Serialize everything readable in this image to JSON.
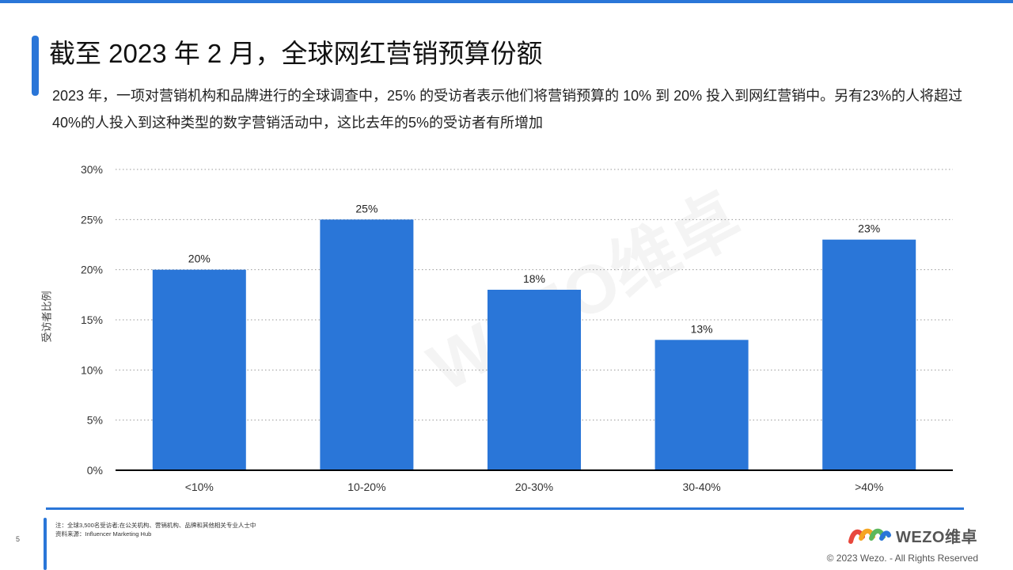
{
  "page": {
    "title": "截至 2023 年 2 月，全球网红营销预算份额",
    "subtitle": "2023 年，一项对营销机构和品牌进行的全球调查中，25% 的受访者表示他们将营销预算的 10% 到 20% 投入到网红营销中。另有23%的人将超过40%的人投入到这种类型的数字营销活动中，这比去年的5%的受访者有所增加",
    "page_number": "5",
    "watermark": "WEZO维卓",
    "notes": {
      "line1": "注：全球3,500名受访者;在公关机构、营销机构、品牌和其他相关专业人士中",
      "line2": "资料来源：Influencer Marketing Hub"
    },
    "logo_text": "WEZO维卓",
    "copyright": "© 2023 Wezo. - All Rights Reserved"
  },
  "colors": {
    "accent": "#2a76d8",
    "bar": "#2a76d8",
    "grid": "#999999",
    "axis": "#000000",
    "logo_red": "#e8473c",
    "logo_orange": "#f5a623",
    "logo_green": "#5cb85c",
    "logo_blue": "#2a76d8"
  },
  "chart_data": {
    "type": "bar",
    "categories": [
      "<10%",
      "10-20%",
      "20-30%",
      "30-40%",
      ">40%"
    ],
    "values": [
      20,
      25,
      18,
      13,
      23
    ],
    "value_labels": [
      "20%",
      "25%",
      "18%",
      "13%",
      "23%"
    ],
    "ylabel": "受访者比例",
    "xlabel": "",
    "ylim": [
      0,
      30
    ],
    "yticks": [
      0,
      5,
      10,
      15,
      20,
      25,
      30
    ],
    "ytick_labels": [
      "0%",
      "5%",
      "10%",
      "15%",
      "20%",
      "25%",
      "30%"
    ],
    "grid": true
  }
}
